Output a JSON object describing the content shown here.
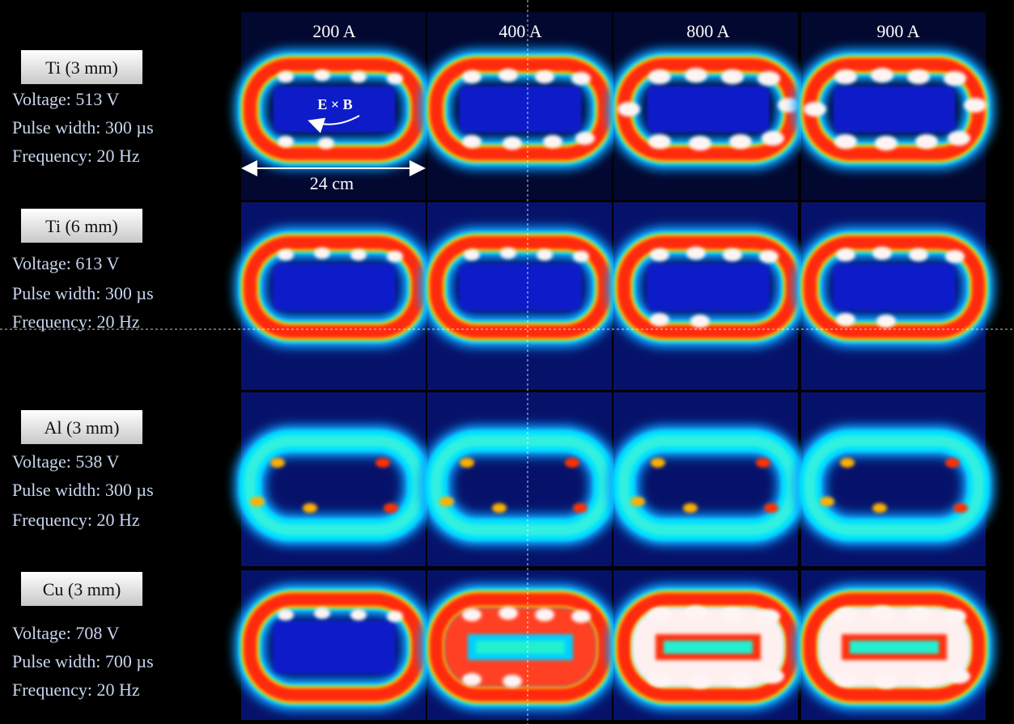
{
  "columns": [
    "200 A",
    "400 A",
    "800 A",
    "900 A"
  ],
  "rows": [
    {
      "material": "Ti (3 mm)",
      "lines": [
        "Voltage: 513 V",
        "Pulse width: 300 µs",
        "Frequency: 20 Hz"
      ]
    },
    {
      "material": "Ti (6 mm)",
      "lines": [
        "Voltage: 613 V",
        "Pulse width: 300 µs",
        "Frequency: 20 Hz"
      ]
    },
    {
      "material": "Al (3 mm)",
      "lines": [
        "Voltage: 538 V",
        "Pulse width: 300 µs",
        "Frequency: 20 Hz"
      ]
    },
    {
      "material": "Cu (3 mm)",
      "lines": [
        "Voltage: 708 V",
        "Pulse width: 700 µs",
        "Frequency: 20 Hz"
      ]
    }
  ],
  "annotations": {
    "field": "E × B",
    "scale": "24 cm"
  }
}
